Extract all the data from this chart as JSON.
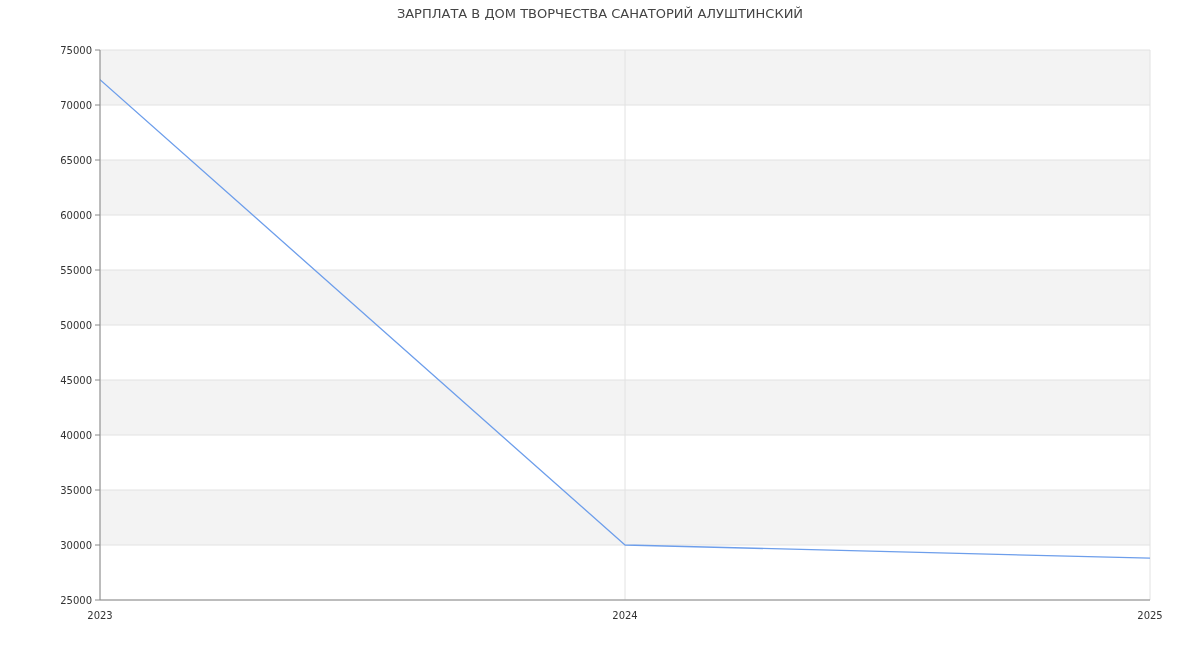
{
  "chart_data": {
    "type": "line",
    "title": "ЗАРПЛАТА В ДОМ ТВОРЧЕСТВА САНАТОРИЙ АЛУШТИНСКИЙ",
    "x": [
      2023,
      2024,
      2025
    ],
    "series": [
      {
        "color": "#6d9eeb",
        "values": [
          72300,
          30000,
          28800
        ]
      }
    ],
    "xlim": [
      2023,
      2025
    ],
    "xticks": [
      2023,
      2024,
      2025
    ],
    "ylim": [
      25000,
      75000
    ],
    "yticks": [
      25000,
      30000,
      35000,
      40000,
      45000,
      50000,
      55000,
      60000,
      65000,
      70000,
      75000
    ],
    "grid": true,
    "marker": "none",
    "line_style": "solid"
  }
}
